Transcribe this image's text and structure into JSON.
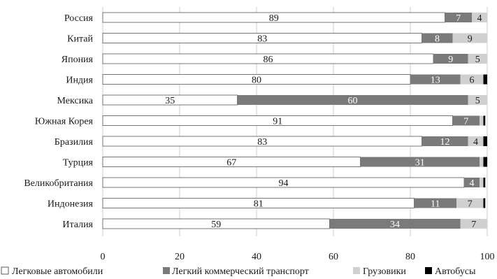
{
  "chart_data": {
    "type": "bar",
    "orientation": "horizontal",
    "stacked": true,
    "categories": [
      "Россия",
      "Китай",
      "Япония",
      "Индия",
      "Мексика",
      "Южная Корея",
      "Бразилия",
      "Турция",
      "Великобритания",
      "Индонезия",
      "Италия"
    ],
    "series": [
      {
        "name": "Легковые автомобили",
        "values": [
          89,
          83,
          86,
          80,
          35,
          91,
          83,
          67,
          94,
          81,
          59
        ]
      },
      {
        "name": "Легкий коммерческий транспорт",
        "values": [
          7,
          8,
          9,
          13,
          60,
          7,
          12,
          31,
          4,
          11,
          34
        ]
      },
      {
        "name": "Грузовики",
        "values": [
          4,
          9,
          5,
          6,
          5,
          1,
          4,
          1,
          1,
          7,
          7
        ]
      },
      {
        "name": "Автобусы",
        "values": [
          1,
          1,
          0.5,
          1,
          0.5,
          0.5,
          1,
          1,
          0.5,
          0.5,
          0.5
        ]
      }
    ],
    "data_labels": [
      [
        "89",
        "7",
        "4",
        ""
      ],
      [
        "83",
        "8",
        "9",
        ""
      ],
      [
        "86",
        "9",
        "5",
        ""
      ],
      [
        "80",
        "13",
        "6",
        ""
      ],
      [
        "35",
        "60",
        "5",
        ""
      ],
      [
        "91",
        "7",
        "",
        ""
      ],
      [
        "83",
        "12",
        "4",
        ""
      ],
      [
        "67",
        "31",
        "",
        ""
      ],
      [
        "94",
        "4",
        "",
        ""
      ],
      [
        "81",
        "11",
        "7",
        ""
      ],
      [
        "59",
        "34",
        "7",
        ""
      ]
    ],
    "xlim": [
      0,
      100
    ],
    "xticks": [
      "0",
      "20",
      "40",
      "60",
      "80",
      "100"
    ],
    "grid": true,
    "legend_position": "bottom",
    "colors": {
      "Легковые автомобили": "#ffffff",
      "Легкий коммерческий транспорт": "#7a7a7a",
      "Грузовики": "#d0d0d0",
      "Автобусы": "#000000"
    },
    "label_colors": [
      "#1a1a1a",
      "#ffffff",
      "#1a1a1a",
      "#ffffff"
    ]
  }
}
